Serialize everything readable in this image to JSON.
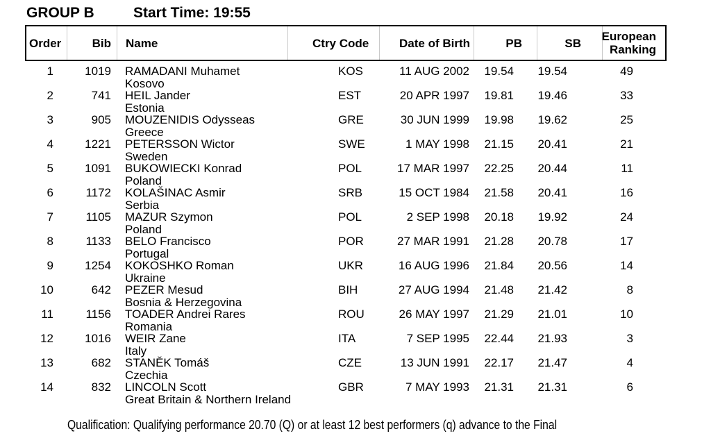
{
  "header": {
    "group": "GROUP B",
    "start_time": "Start Time: 19:55"
  },
  "table": {
    "headers": {
      "order": "Order",
      "bib": "Bib",
      "name": "Name",
      "ctry_code": "Ctry Code",
      "date_of_birth": "Date of Birth",
      "pb": "PB",
      "sb": "SB",
      "european_ranking": "European Ranking"
    },
    "rows": [
      {
        "order": "1",
        "bib": "1019",
        "name": "RAMADANI Muhamet",
        "country": "Kosovo",
        "ctry_code": "KOS",
        "date_of_birth": "11 AUG 2002",
        "pb": "19.54",
        "sb": "19.54",
        "european_ranking": "49"
      },
      {
        "order": "2",
        "bib": "741",
        "name": "HEIL Jander",
        "country": "Estonia",
        "ctry_code": "EST",
        "date_of_birth": "20 APR 1997",
        "pb": "19.81",
        "sb": "19.46",
        "european_ranking": "33"
      },
      {
        "order": "3",
        "bib": "905",
        "name": "MOUZENIDIS Odysseas",
        "country": "Greece",
        "ctry_code": "GRE",
        "date_of_birth": "30 JUN 1999",
        "pb": "19.98",
        "sb": "19.62",
        "european_ranking": "25"
      },
      {
        "order": "4",
        "bib": "1221",
        "name": "PETERSSON Wictor",
        "country": "Sweden",
        "ctry_code": "SWE",
        "date_of_birth": "1 MAY 1998",
        "pb": "21.15",
        "sb": "20.41",
        "european_ranking": "21"
      },
      {
        "order": "5",
        "bib": "1091",
        "name": "BUKOWIECKI Konrad",
        "country": "Poland",
        "ctry_code": "POL",
        "date_of_birth": "17 MAR 1997",
        "pb": "22.25",
        "sb": "20.44",
        "european_ranking": "11"
      },
      {
        "order": "6",
        "bib": "1172",
        "name": "KOLAŠINAC Asmir",
        "country": "Serbia",
        "ctry_code": "SRB",
        "date_of_birth": "15 OCT 1984",
        "pb": "21.58",
        "sb": "20.41",
        "european_ranking": "16"
      },
      {
        "order": "7",
        "bib": "1105",
        "name": "MAZUR Szymon",
        "country": "Poland",
        "ctry_code": "POL",
        "date_of_birth": "2 SEP 1998",
        "pb": "20.18",
        "sb": "19.92",
        "european_ranking": "24"
      },
      {
        "order": "8",
        "bib": "1133",
        "name": "BELO Francisco",
        "country": "Portugal",
        "ctry_code": "POR",
        "date_of_birth": "27 MAR 1991",
        "pb": "21.28",
        "sb": "20.78",
        "european_ranking": "17"
      },
      {
        "order": "9",
        "bib": "1254",
        "name": "KOKOSHKO Roman",
        "country": "Ukraine",
        "ctry_code": "UKR",
        "date_of_birth": "16 AUG 1996",
        "pb": "21.84",
        "sb": "20.56",
        "european_ranking": "14"
      },
      {
        "order": "10",
        "bib": "642",
        "name": "PEZER Mesud",
        "country": "Bosnia & Herzegovina",
        "ctry_code": "BIH",
        "date_of_birth": "27 AUG 1994",
        "pb": "21.48",
        "sb": "21.42",
        "european_ranking": "8"
      },
      {
        "order": "11",
        "bib": "1156",
        "name": "TOADER Andrei Rares",
        "country": "Romania",
        "ctry_code": "ROU",
        "date_of_birth": "26 MAY 1997",
        "pb": "21.29",
        "sb": "21.01",
        "european_ranking": "10"
      },
      {
        "order": "12",
        "bib": "1016",
        "name": "WEIR Zane",
        "country": "Italy",
        "ctry_code": "ITA",
        "date_of_birth": "7 SEP 1995",
        "pb": "22.44",
        "sb": "21.93",
        "european_ranking": "3"
      },
      {
        "order": "13",
        "bib": "682",
        "name": "STANĚK Tomáš",
        "country": "Czechia",
        "ctry_code": "CZE",
        "date_of_birth": "13 JUN 1991",
        "pb": "22.17",
        "sb": "21.47",
        "european_ranking": "4"
      },
      {
        "order": "14",
        "bib": "832",
        "name": "LINCOLN Scott",
        "country": "Great Britain & Northern Ireland",
        "ctry_code": "GBR",
        "date_of_birth": "7 MAY 1993",
        "pb": "21.31",
        "sb": "21.31",
        "european_ranking": "6"
      }
    ]
  },
  "footer": {
    "qualification": "Qualification: Qualifying performance 20.70 (Q) or at least 12 best performers (q) advance to the Final"
  }
}
